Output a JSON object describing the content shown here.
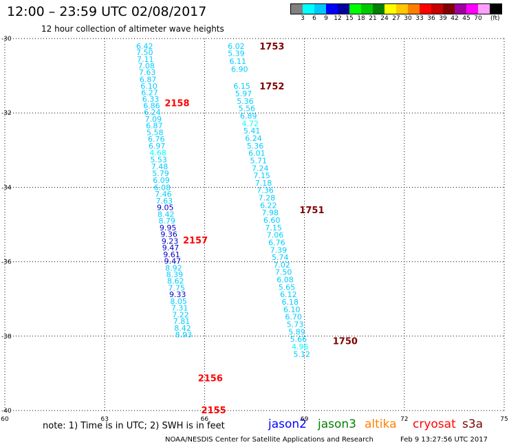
{
  "header": {
    "title": "12:00 – 23:59 UTC 02/08/2017",
    "subtitle": "12 hour collection of altimeter wave heights"
  },
  "color_scale": {
    "colors": [
      "#808080",
      "#00ffff",
      "#00c8ff",
      "#0000ff",
      "#0000a0",
      "#00ff00",
      "#00c800",
      "#008000",
      "#ffff00",
      "#ffc800",
      "#ff8000",
      "#ff0000",
      "#c80000",
      "#800000",
      "#a000a0",
      "#ff00ff",
      "#ffa0ff",
      "#000000"
    ],
    "labels": [
      "3",
      "6",
      "9",
      "12",
      "15",
      "18",
      "21",
      "24",
      "27",
      "30",
      "33",
      "36",
      "39",
      "42",
      "45",
      "70"
    ],
    "unit": "(ft)"
  },
  "chart_data": {
    "type": "scatter",
    "description_axes": "longitude (x) vs latitude (y)",
    "xlim": [
      60,
      75
    ],
    "ylim": [
      -40,
      -30
    ],
    "x_ticks": [
      "60",
      "63",
      "66",
      "69",
      "72",
      "75"
    ],
    "y_ticks": [
      "-30",
      "-32",
      "-34",
      "-36",
      "-38",
      "-40"
    ],
    "grid": true,
    "labels": [
      {
        "text": "1753",
        "lon": 67.65,
        "lat": -30.2,
        "color": "#800000"
      },
      {
        "text": "1752",
        "lon": 67.65,
        "lat": -31.28,
        "color": "#800000"
      },
      {
        "text": "1751",
        "lon": 68.85,
        "lat": -34.6,
        "color": "#800000"
      },
      {
        "text": "1750",
        "lon": 69.85,
        "lat": -38.12,
        "color": "#800000"
      },
      {
        "text": "2158",
        "lon": 64.8,
        "lat": -31.73,
        "color": "#ff0000"
      },
      {
        "text": "2157",
        "lon": 65.35,
        "lat": -35.42,
        "color": "#ff0000"
      },
      {
        "text": "2156",
        "lon": 65.8,
        "lat": -39.12,
        "color": "#ff0000"
      },
      {
        "text": "2155",
        "lon": 65.9,
        "lat": -39.98,
        "color": "#ff0000"
      }
    ],
    "series": [
      {
        "points": [
          {
            "lon": 64.2,
            "lat": -30.2,
            "v": "6.42",
            "c": "#00ccff"
          },
          {
            "lon": 64.2,
            "lat": -30.37,
            "v": "7.50",
            "c": "#00ccff"
          },
          {
            "lon": 64.22,
            "lat": -30.55,
            "v": "7.11",
            "c": "#00ccff"
          },
          {
            "lon": 64.25,
            "lat": -30.73,
            "v": "7.08",
            "c": "#00ccff"
          },
          {
            "lon": 64.28,
            "lat": -30.91,
            "v": "7.63",
            "c": "#00ccff"
          },
          {
            "lon": 64.3,
            "lat": -31.1,
            "v": "6.87",
            "c": "#00ccff"
          },
          {
            "lon": 64.33,
            "lat": -31.28,
            "v": "6.10",
            "c": "#00ccff"
          },
          {
            "lon": 64.35,
            "lat": -31.45,
            "v": "6.27",
            "c": "#00ccff"
          },
          {
            "lon": 64.38,
            "lat": -31.63,
            "v": "6.33",
            "c": "#00ccff"
          },
          {
            "lon": 64.41,
            "lat": -31.8,
            "v": "6.86",
            "c": "#00ccff"
          },
          {
            "lon": 64.43,
            "lat": -31.98,
            "v": "6.24",
            "c": "#00ccff"
          },
          {
            "lon": 64.46,
            "lat": -32.16,
            "v": "7.09",
            "c": "#00ccff"
          },
          {
            "lon": 64.49,
            "lat": -32.34,
            "v": "6.87",
            "c": "#00ccff"
          },
          {
            "lon": 64.51,
            "lat": -32.52,
            "v": "5.58",
            "c": "#00ccff"
          },
          {
            "lon": 64.55,
            "lat": -32.7,
            "v": "6.76",
            "c": "#00ccff"
          },
          {
            "lon": 64.57,
            "lat": -32.88,
            "v": "6.97",
            "c": "#00ccff"
          },
          {
            "lon": 64.6,
            "lat": -33.07,
            "v": "4.68",
            "c": "#00ffff"
          },
          {
            "lon": 64.62,
            "lat": -33.25,
            "v": "5.53",
            "c": "#00ccff"
          },
          {
            "lon": 64.65,
            "lat": -33.44,
            "v": "7.48",
            "c": "#00ccff"
          },
          {
            "lon": 64.68,
            "lat": -33.62,
            "v": "5.79",
            "c": "#00ccff"
          },
          {
            "lon": 64.7,
            "lat": -33.81,
            "v": "6.09",
            "c": "#00ccff"
          },
          {
            "lon": 64.73,
            "lat": -34.0,
            "v": "6.08",
            "c": "#00ccff"
          },
          {
            "lon": 64.76,
            "lat": -34.18,
            "v": "7.46",
            "c": "#00ccff"
          },
          {
            "lon": 64.79,
            "lat": -34.36,
            "v": "7.63",
            "c": "#00ccff"
          },
          {
            "lon": 64.82,
            "lat": -34.54,
            "v": "9.05",
            "c": "#0000c8"
          },
          {
            "lon": 64.84,
            "lat": -34.72,
            "v": "8.42",
            "c": "#00ccff"
          },
          {
            "lon": 64.87,
            "lat": -34.9,
            "v": "8.79",
            "c": "#00ccff"
          },
          {
            "lon": 64.9,
            "lat": -35.08,
            "v": "9.95",
            "c": "#0000c8"
          },
          {
            "lon": 64.93,
            "lat": -35.26,
            "v": "9.36",
            "c": "#0000c8"
          },
          {
            "lon": 64.96,
            "lat": -35.44,
            "v": "9.23",
            "c": "#0000c8"
          },
          {
            "lon": 64.98,
            "lat": -35.62,
            "v": "9.47",
            "c": "#0000c8"
          },
          {
            "lon": 65.01,
            "lat": -35.8,
            "v": "9.61",
            "c": "#0000c8"
          },
          {
            "lon": 65.04,
            "lat": -35.98,
            "v": "9.47",
            "c": "#0000c8"
          },
          {
            "lon": 65.07,
            "lat": -36.16,
            "v": "8.92",
            "c": "#00ccff"
          },
          {
            "lon": 65.1,
            "lat": -36.34,
            "v": "8.39",
            "c": "#00ccff"
          },
          {
            "lon": 65.13,
            "lat": -36.52,
            "v": "8.62",
            "c": "#00ccff"
          },
          {
            "lon": 65.16,
            "lat": -36.7,
            "v": "7.75",
            "c": "#00ccff"
          },
          {
            "lon": 65.19,
            "lat": -36.88,
            "v": "9.33",
            "c": "#0000c8"
          },
          {
            "lon": 65.22,
            "lat": -37.06,
            "v": "8.05",
            "c": "#00ccff"
          },
          {
            "lon": 65.25,
            "lat": -37.24,
            "v": "7.31",
            "c": "#00ccff"
          },
          {
            "lon": 65.28,
            "lat": -37.42,
            "v": "7.22",
            "c": "#00ccff"
          },
          {
            "lon": 65.31,
            "lat": -37.6,
            "v": "7.81",
            "c": "#00ccff"
          },
          {
            "lon": 65.34,
            "lat": -37.78,
            "v": "8.42",
            "c": "#00ccff"
          },
          {
            "lon": 65.37,
            "lat": -37.96,
            "v": "8.93",
            "c": "#00ccff"
          }
        ]
      },
      {
        "points": [
          {
            "lon": 66.95,
            "lat": -30.2,
            "v": "6.02",
            "c": "#00ccff"
          },
          {
            "lon": 66.95,
            "lat": -30.4,
            "v": "5.39",
            "c": "#00ccff"
          },
          {
            "lon": 67.0,
            "lat": -30.61,
            "v": "6.11",
            "c": "#00ccff"
          },
          {
            "lon": 67.05,
            "lat": -30.82,
            "v": "6.90",
            "c": "#00ccff"
          },
          {
            "lon": 67.12,
            "lat": -31.28,
            "v": "6.15",
            "c": "#00ccff"
          },
          {
            "lon": 67.17,
            "lat": -31.48,
            "v": "5.97",
            "c": "#00ccff"
          },
          {
            "lon": 67.22,
            "lat": -31.68,
            "v": "5.36",
            "c": "#00ccff"
          },
          {
            "lon": 67.27,
            "lat": -31.88,
            "v": "5.56",
            "c": "#00ccff"
          },
          {
            "lon": 67.32,
            "lat": -32.08,
            "v": "6.89",
            "c": "#00ccff"
          },
          {
            "lon": 67.37,
            "lat": -32.28,
            "v": "4.72",
            "c": "#00ffff"
          },
          {
            "lon": 67.42,
            "lat": -32.48,
            "v": "5.41",
            "c": "#00ccff"
          },
          {
            "lon": 67.47,
            "lat": -32.68,
            "v": "6.24",
            "c": "#00ccff"
          },
          {
            "lon": 67.52,
            "lat": -32.88,
            "v": "5.36",
            "c": "#00ccff"
          },
          {
            "lon": 67.57,
            "lat": -33.08,
            "v": "6.01",
            "c": "#00ccff"
          },
          {
            "lon": 67.62,
            "lat": -33.28,
            "v": "5.71",
            "c": "#00ccff"
          },
          {
            "lon": 67.67,
            "lat": -33.48,
            "v": "7.24",
            "c": "#00ccff"
          },
          {
            "lon": 67.72,
            "lat": -33.68,
            "v": "7.15",
            "c": "#00ccff"
          },
          {
            "lon": 67.77,
            "lat": -33.88,
            "v": "7.18",
            "c": "#00ccff"
          },
          {
            "lon": 67.82,
            "lat": -34.08,
            "v": "7.36",
            "c": "#00ccff"
          },
          {
            "lon": 67.87,
            "lat": -34.28,
            "v": "7.28",
            "c": "#00ccff"
          },
          {
            "lon": 67.92,
            "lat": -34.48,
            "v": "6.22",
            "c": "#00ccff"
          },
          {
            "lon": 67.97,
            "lat": -34.68,
            "v": "7.98",
            "c": "#00ccff"
          },
          {
            "lon": 68.02,
            "lat": -34.88,
            "v": "6.60",
            "c": "#00ccff"
          },
          {
            "lon": 68.07,
            "lat": -35.08,
            "v": "7.15",
            "c": "#00ccff"
          },
          {
            "lon": 68.12,
            "lat": -35.28,
            "v": "7.06",
            "c": "#00ccff"
          },
          {
            "lon": 68.17,
            "lat": -35.48,
            "v": "6.76",
            "c": "#00ccff"
          },
          {
            "lon": 68.22,
            "lat": -35.68,
            "v": "7.39",
            "c": "#00ccff"
          },
          {
            "lon": 68.27,
            "lat": -35.88,
            "v": "5.74",
            "c": "#00ccff"
          },
          {
            "lon": 68.32,
            "lat": -36.08,
            "v": "7.02",
            "c": "#00ccff"
          },
          {
            "lon": 68.37,
            "lat": -36.28,
            "v": "7.50",
            "c": "#00ccff"
          },
          {
            "lon": 68.42,
            "lat": -36.48,
            "v": "6.08",
            "c": "#00ccff"
          },
          {
            "lon": 68.47,
            "lat": -36.68,
            "v": "5.65",
            "c": "#00ccff"
          },
          {
            "lon": 68.52,
            "lat": -36.88,
            "v": "6.12",
            "c": "#00ccff"
          },
          {
            "lon": 68.57,
            "lat": -37.08,
            "v": "6.18",
            "c": "#00ccff"
          },
          {
            "lon": 68.62,
            "lat": -37.28,
            "v": "6.10",
            "c": "#00ccff"
          },
          {
            "lon": 68.67,
            "lat": -37.48,
            "v": "6.70",
            "c": "#00ccff"
          },
          {
            "lon": 68.72,
            "lat": -37.68,
            "v": "5.73",
            "c": "#00ccff"
          },
          {
            "lon": 68.77,
            "lat": -37.88,
            "v": "5.89",
            "c": "#00ccff"
          },
          {
            "lon": 68.82,
            "lat": -38.08,
            "v": "5.66",
            "c": "#00ccff"
          },
          {
            "lon": 68.87,
            "lat": -38.28,
            "v": "4.96",
            "c": "#00ffff"
          },
          {
            "lon": 68.92,
            "lat": -38.48,
            "v": "5.12",
            "c": "#00ccff"
          }
        ]
      }
    ]
  },
  "footer": {
    "note": "note:  1) Time is in UTC;  2) SWH is in feet",
    "satellites": [
      {
        "name": "jason2",
        "color": "#0000ff"
      },
      {
        "name": "jason3",
        "color": "#008000"
      },
      {
        "name": "altika",
        "color": "#ff8000"
      },
      {
        "name": "cryosat",
        "color": "#ff0000"
      },
      {
        "name": "s3a",
        "color": "#800000"
      }
    ],
    "credit": "NOAA/NESDIS Center for Satellite Applications and Research",
    "generated": "Feb  9 13:27:56 UTC 2017"
  }
}
